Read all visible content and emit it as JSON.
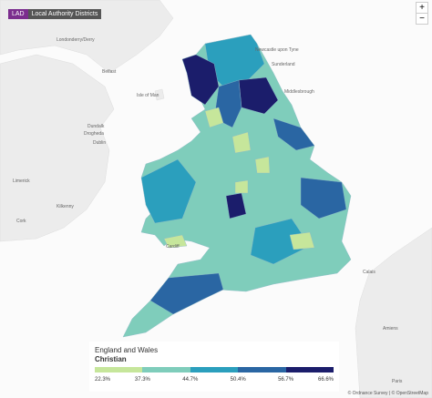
{
  "badge": {
    "code": "LAD",
    "label": "Local Authority Districts"
  },
  "zoom": {
    "in": "+",
    "out": "−"
  },
  "places": [
    "Newcastle upon Tyne",
    "Sunderland",
    "Middlesbrough",
    "Londonderry/Derry",
    "Belfast",
    "Isle of Man",
    "Dundalk",
    "Drogheda",
    "Dublin",
    "Limerick",
    "Kilkenny",
    "Cork",
    "Calais",
    "Amiens",
    "Paris",
    "Cardiff"
  ],
  "legend": {
    "title": "England and Wales",
    "subtitle": "Christian",
    "breaks": [
      "22.3%",
      "37.3%",
      "44.7%",
      "50.4%",
      "56.7%",
      "66.6%"
    ],
    "colors": [
      "#c6e69b",
      "#7fcdbb",
      "#2b9fbd",
      "#2a66a3",
      "#1b1d6b"
    ]
  },
  "attribution": "© Ordnance Survey | © OpenStreetMap"
}
